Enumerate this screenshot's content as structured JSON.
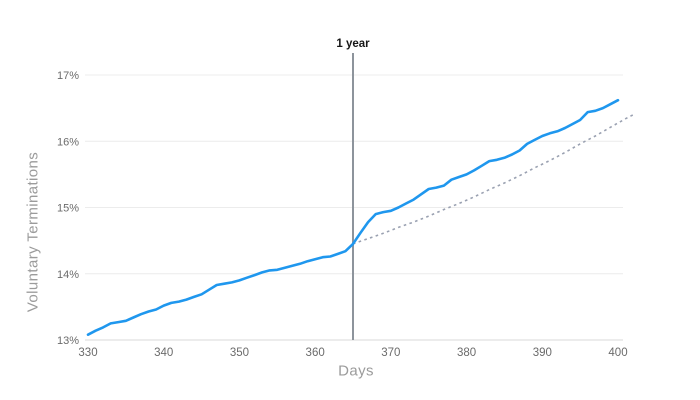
{
  "chart_data": {
    "type": "line",
    "title": "",
    "xlabel": "Days",
    "ylabel": "Voluntary Terminations",
    "xlim": [
      330,
      400
    ],
    "ylim": [
      13,
      17
    ],
    "grid": true,
    "legend": false,
    "x_ticks": [
      {
        "value": 330,
        "label": "330"
      },
      {
        "value": 340,
        "label": "340"
      },
      {
        "value": 350,
        "label": "350"
      },
      {
        "value": 360,
        "label": "360"
      },
      {
        "value": 370,
        "label": "370"
      },
      {
        "value": 380,
        "label": "380"
      },
      {
        "value": 390,
        "label": "390"
      },
      {
        "value": 400,
        "label": "400"
      }
    ],
    "y_ticks": [
      {
        "value": 13,
        "label": "13%"
      },
      {
        "value": 14,
        "label": "14%"
      },
      {
        "value": 15,
        "label": "15%"
      },
      {
        "value": 16,
        "label": "16%"
      },
      {
        "value": 17,
        "label": "17%"
      }
    ],
    "annotations": [
      {
        "label": "1 year",
        "x": 365
      }
    ],
    "colors": {
      "line": "#1f97ee",
      "projection": "#9aa1b1",
      "marker_line": "#8d949c",
      "grid": "#ececec",
      "axis_line": "#d9d9d9",
      "tick_text": "#6b6b6b",
      "axis_label_text": "#9b9b9b",
      "annotation_text": "#161616"
    },
    "series": [
      {
        "id": "actual",
        "style": "solid",
        "points": [
          [
            330,
            13.08
          ],
          [
            331,
            13.14
          ],
          [
            332,
            13.19
          ],
          [
            333,
            13.25
          ],
          [
            334,
            13.27
          ],
          [
            335,
            13.29
          ],
          [
            336,
            13.34
          ],
          [
            337,
            13.39
          ],
          [
            338,
            13.43
          ],
          [
            339,
            13.46
          ],
          [
            340,
            13.52
          ],
          [
            341,
            13.56
          ],
          [
            342,
            13.58
          ],
          [
            343,
            13.61
          ],
          [
            344,
            13.65
          ],
          [
            345,
            13.69
          ],
          [
            346,
            13.76
          ],
          [
            347,
            13.83
          ],
          [
            348,
            13.85
          ],
          [
            349,
            13.87
          ],
          [
            350,
            13.9
          ],
          [
            351,
            13.94
          ],
          [
            352,
            13.98
          ],
          [
            353,
            14.02
          ],
          [
            354,
            14.05
          ],
          [
            355,
            14.06
          ],
          [
            356,
            14.09
          ],
          [
            357,
            14.12
          ],
          [
            358,
            14.15
          ],
          [
            359,
            14.19
          ],
          [
            360,
            14.22
          ],
          [
            361,
            14.25
          ],
          [
            362,
            14.26
          ],
          [
            363,
            14.3
          ],
          [
            364,
            14.34
          ],
          [
            365,
            14.45
          ],
          [
            366,
            14.62
          ],
          [
            367,
            14.78
          ],
          [
            368,
            14.9
          ],
          [
            369,
            14.93
          ],
          [
            370,
            14.95
          ],
          [
            371,
            15.0
          ],
          [
            372,
            15.06
          ],
          [
            373,
            15.12
          ],
          [
            374,
            15.2
          ],
          [
            375,
            15.28
          ],
          [
            376,
            15.3
          ],
          [
            377,
            15.33
          ],
          [
            378,
            15.42
          ],
          [
            379,
            15.46
          ],
          [
            380,
            15.5
          ],
          [
            381,
            15.56
          ],
          [
            382,
            15.63
          ],
          [
            383,
            15.7
          ],
          [
            384,
            15.72
          ],
          [
            385,
            15.75
          ],
          [
            386,
            15.8
          ],
          [
            387,
            15.86
          ],
          [
            388,
            15.96
          ],
          [
            389,
            16.02
          ],
          [
            390,
            16.08
          ],
          [
            391,
            16.12
          ],
          [
            392,
            16.15
          ],
          [
            393,
            16.2
          ],
          [
            394,
            16.26
          ],
          [
            395,
            16.32
          ],
          [
            396,
            16.44
          ],
          [
            397,
            16.46
          ],
          [
            398,
            16.5
          ],
          [
            399,
            16.56
          ],
          [
            400,
            16.62
          ]
        ]
      },
      {
        "id": "projection",
        "style": "dashed",
        "points": [
          [
            365,
            14.45
          ],
          [
            367,
            14.53
          ],
          [
            369,
            14.61
          ],
          [
            371,
            14.7
          ],
          [
            373,
            14.78
          ],
          [
            375,
            14.87
          ],
          [
            377,
            14.97
          ],
          [
            379,
            15.06
          ],
          [
            381,
            15.16
          ],
          [
            383,
            15.27
          ],
          [
            385,
            15.37
          ],
          [
            387,
            15.48
          ],
          [
            389,
            15.6
          ],
          [
            391,
            15.71
          ],
          [
            393,
            15.83
          ],
          [
            395,
            15.96
          ],
          [
            397,
            16.08
          ],
          [
            399,
            16.21
          ],
          [
            401,
            16.34
          ],
          [
            402,
            16.4
          ]
        ]
      }
    ]
  }
}
